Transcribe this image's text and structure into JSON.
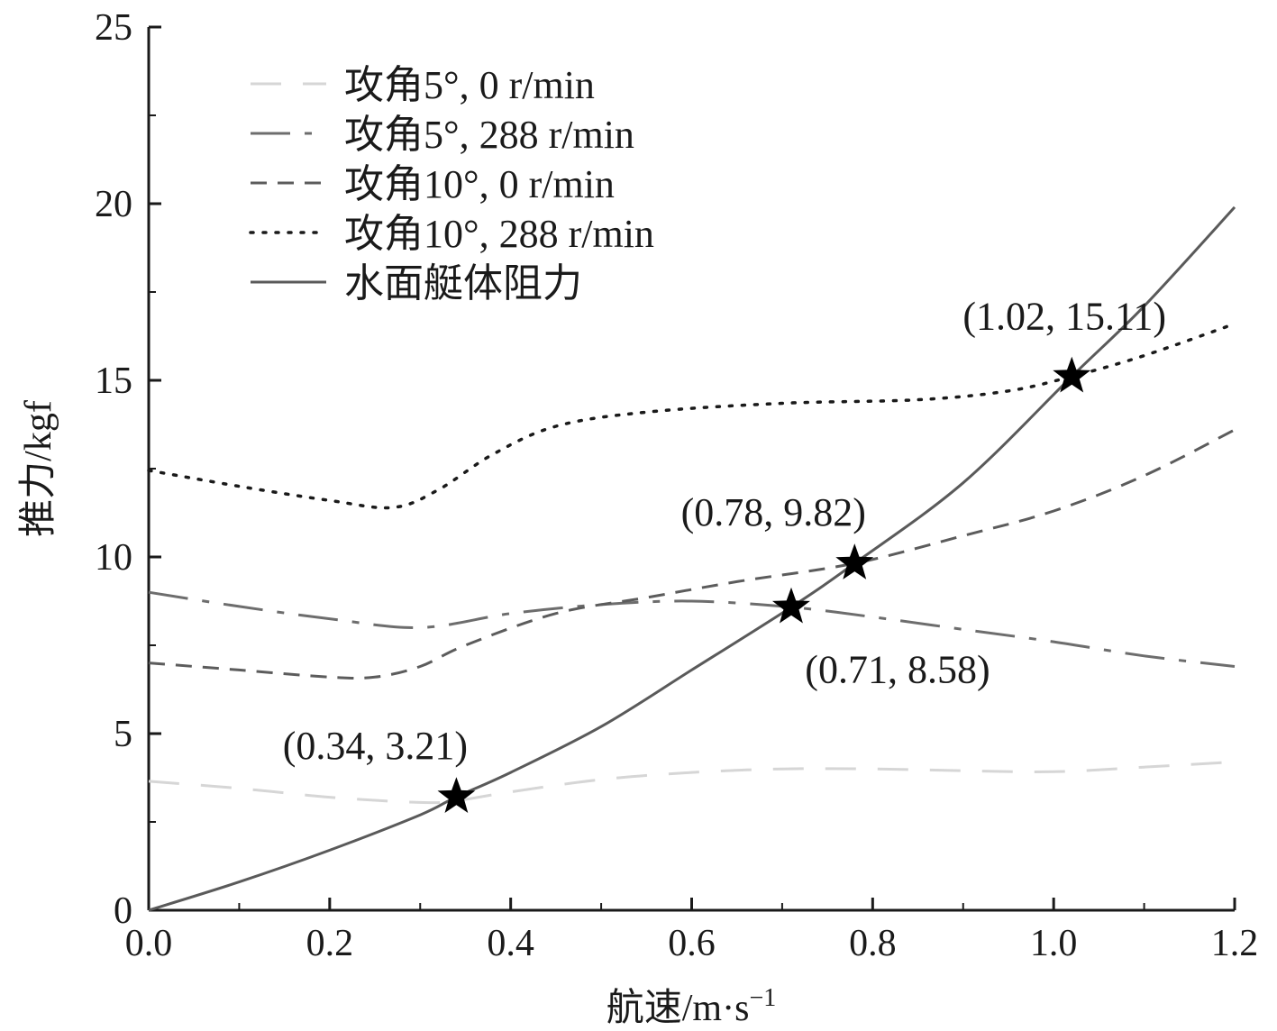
{
  "chart_data": {
    "type": "line",
    "xlabel": "航速/m·s",
    "xlabel_sup": "−1",
    "ylabel": "推力/kgf",
    "xlim": [
      0,
      1.2
    ],
    "ylim": [
      0,
      25
    ],
    "x_ticks": [
      "0.0",
      "0.2",
      "0.4",
      "0.6",
      "0.8",
      "1.0",
      "1.2"
    ],
    "y_ticks": [
      "0",
      "5",
      "10",
      "15",
      "20",
      "25"
    ],
    "grid": false,
    "legend_position": "top-left",
    "series": [
      {
        "name": "攻角5°, 0 r/min",
        "style": "long-dash",
        "color": "#d6d6d6",
        "points": [
          [
            0,
            3.65
          ],
          [
            0.1,
            3.45
          ],
          [
            0.2,
            3.2
          ],
          [
            0.3,
            3.05
          ],
          [
            0.34,
            3.1
          ],
          [
            0.4,
            3.35
          ],
          [
            0.5,
            3.7
          ],
          [
            0.6,
            3.9
          ],
          [
            0.7,
            4.0
          ],
          [
            0.8,
            4.0
          ],
          [
            0.9,
            3.95
          ],
          [
            1.0,
            3.92
          ],
          [
            1.1,
            4.05
          ],
          [
            1.2,
            4.2
          ]
        ]
      },
      {
        "name": "攻角5°, 288 r/min",
        "style": "dash-dot",
        "color": "#6d6d6d",
        "points": [
          [
            0,
            9.0
          ],
          [
            0.1,
            8.6
          ],
          [
            0.2,
            8.25
          ],
          [
            0.3,
            8.0
          ],
          [
            0.4,
            8.4
          ],
          [
            0.5,
            8.65
          ],
          [
            0.6,
            8.75
          ],
          [
            0.71,
            8.58
          ],
          [
            0.8,
            8.3
          ],
          [
            0.9,
            7.95
          ],
          [
            1.0,
            7.6
          ],
          [
            1.1,
            7.2
          ],
          [
            1.2,
            6.9
          ]
        ]
      },
      {
        "name": "攻角10°, 0 r/min",
        "style": "short-dash",
        "color": "#5c5c5c",
        "points": [
          [
            0,
            7.0
          ],
          [
            0.1,
            6.8
          ],
          [
            0.2,
            6.6
          ],
          [
            0.25,
            6.6
          ],
          [
            0.3,
            6.9
          ],
          [
            0.35,
            7.5
          ],
          [
            0.45,
            8.4
          ],
          [
            0.55,
            8.85
          ],
          [
            0.65,
            9.3
          ],
          [
            0.78,
            9.82
          ],
          [
            0.9,
            10.6
          ],
          [
            1.0,
            11.3
          ],
          [
            1.1,
            12.3
          ],
          [
            1.2,
            13.6
          ]
        ]
      },
      {
        "name": "攻角10°, 288 r/min",
        "style": "dotted",
        "color": "#1a1a1a",
        "points": [
          [
            0,
            12.45
          ],
          [
            0.1,
            12.0
          ],
          [
            0.2,
            11.6
          ],
          [
            0.27,
            11.4
          ],
          [
            0.32,
            11.9
          ],
          [
            0.38,
            12.9
          ],
          [
            0.45,
            13.7
          ],
          [
            0.55,
            14.1
          ],
          [
            0.7,
            14.35
          ],
          [
            0.85,
            14.45
          ],
          [
            0.95,
            14.7
          ],
          [
            1.02,
            15.11
          ],
          [
            1.1,
            15.7
          ],
          [
            1.2,
            16.6
          ]
        ]
      },
      {
        "name": "水面艇体阻力",
        "style": "solid",
        "color": "#5a5a5a",
        "points": [
          [
            0,
            0
          ],
          [
            0.1,
            0.8
          ],
          [
            0.2,
            1.7
          ],
          [
            0.3,
            2.7
          ],
          [
            0.34,
            3.21
          ],
          [
            0.4,
            3.9
          ],
          [
            0.5,
            5.2
          ],
          [
            0.6,
            6.8
          ],
          [
            0.71,
            8.58
          ],
          [
            0.78,
            9.82
          ],
          [
            0.9,
            12.1
          ],
          [
            1.02,
            15.11
          ],
          [
            1.1,
            17.1
          ],
          [
            1.2,
            19.9
          ]
        ]
      }
    ],
    "markers": [
      {
        "x": 0.34,
        "y": 3.21,
        "label": "(0.34, 3.21)",
        "label_position": "above-left"
      },
      {
        "x": 0.71,
        "y": 8.58,
        "label": "(0.71, 8.58)",
        "label_position": "below-right"
      },
      {
        "x": 0.78,
        "y": 9.82,
        "label": "(0.78, 9.82)",
        "label_position": "above-left"
      },
      {
        "x": 1.02,
        "y": 15.11,
        "label": "(1.02, 15.11)",
        "label_position": "above"
      }
    ]
  }
}
